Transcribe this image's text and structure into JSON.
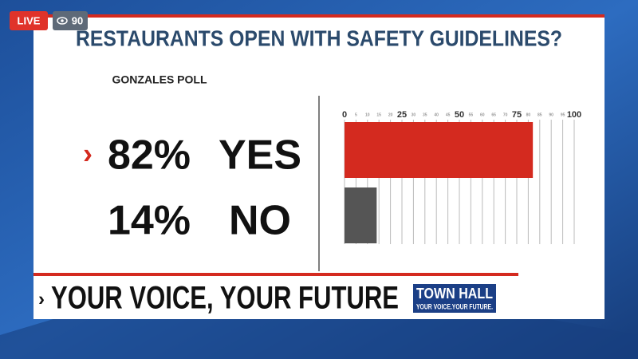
{
  "badge": {
    "live": "LIVE",
    "viewers": 90
  },
  "chart_data": {
    "type": "bar",
    "orientation": "horizontal",
    "title": "RESTAURANTS OPEN WITH SAFETY GUIDELINES?",
    "subtitle": "GONZALES POLL",
    "categories": [
      "YES",
      "NO"
    ],
    "values": [
      82,
      14
    ],
    "value_labels": [
      "82%",
      "14%"
    ],
    "colors": [
      "#d42a1f",
      "#555555"
    ],
    "xlim": [
      0,
      100
    ],
    "xticks": [
      0,
      5,
      10,
      15,
      20,
      25,
      30,
      35,
      40,
      45,
      50,
      55,
      60,
      65,
      70,
      75,
      80,
      85,
      90,
      95,
      100
    ],
    "grid": true
  },
  "banner": {
    "text": "YOUR VOICE, YOUR FUTURE",
    "logo_title": "TOWN HALL",
    "logo_tagline": "YOUR VOICE.YOUR FUTURE."
  }
}
